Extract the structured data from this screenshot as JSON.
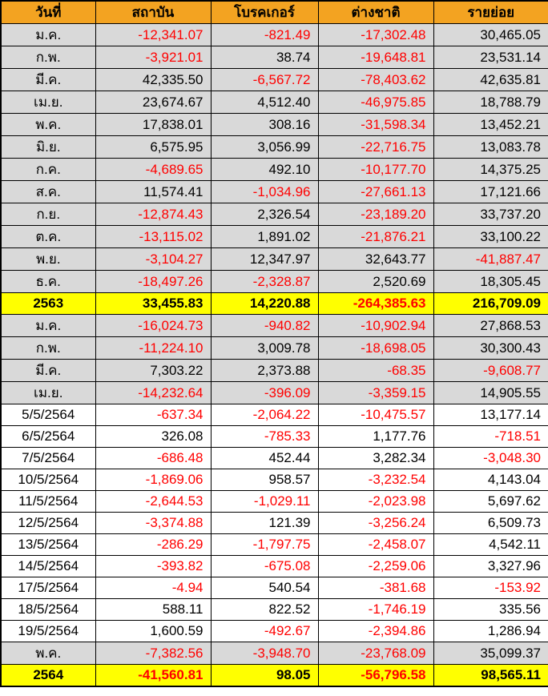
{
  "colors": {
    "header_bg": "#F3A321",
    "month_row_bg": "#D9D9D9",
    "day_row_bg": "#FFFFFF",
    "year_row_bg": "#FFFF00",
    "negative_text": "#FF0000",
    "positive_text": "#000000",
    "grid": "#000000"
  },
  "chart_data": {
    "type": "table",
    "columns": [
      "วันที่",
      "สถาบัน",
      "โบรคเกอร์",
      "ต่างชาติ",
      "รายย่อย"
    ],
    "rows": [
      {
        "type": "month",
        "date": "ม.ค.",
        "values": [
          "-12,341.07",
          "-821.49",
          "-17,302.48",
          "30,465.05"
        ]
      },
      {
        "type": "month",
        "date": "ก.พ.",
        "values": [
          "-3,921.01",
          "38.74",
          "-19,648.81",
          "23,531.14"
        ]
      },
      {
        "type": "month",
        "date": "มี.ค.",
        "values": [
          "42,335.50",
          "-6,567.72",
          "-78,403.62",
          "42,635.81"
        ]
      },
      {
        "type": "month",
        "date": "เม.ย.",
        "values": [
          "23,674.67",
          "4,512.40",
          "-46,975.85",
          "18,788.79"
        ]
      },
      {
        "type": "month",
        "date": "พ.ค.",
        "values": [
          "17,838.01",
          "308.16",
          "-31,598.34",
          "13,452.21"
        ]
      },
      {
        "type": "month",
        "date": "มิ.ย.",
        "values": [
          "6,575.95",
          "3,056.99",
          "-22,716.75",
          "13,083.78"
        ]
      },
      {
        "type": "month",
        "date": "ก.ค.",
        "values": [
          "-4,689.65",
          "492.10",
          "-10,177.70",
          "14,375.25"
        ]
      },
      {
        "type": "month",
        "date": "ส.ค.",
        "values": [
          "11,574.41",
          "-1,034.96",
          "-27,661.13",
          "17,121.66"
        ]
      },
      {
        "type": "month",
        "date": "ก.ย.",
        "values": [
          "-12,874.43",
          "2,326.54",
          "-23,189.20",
          "33,737.20"
        ]
      },
      {
        "type": "month",
        "date": "ต.ค.",
        "values": [
          "-13,115.02",
          "1,891.02",
          "-21,876.21",
          "33,100.22"
        ]
      },
      {
        "type": "month",
        "date": "พ.ย.",
        "values": [
          "-3,104.27",
          "12,347.97",
          "32,643.77",
          "-41,887.47"
        ]
      },
      {
        "type": "month",
        "date": "ธ.ค.",
        "values": [
          "-18,497.26",
          "-2,328.87",
          "2,520.69",
          "18,305.45"
        ]
      },
      {
        "type": "year",
        "date": "2563",
        "values": [
          "33,455.83",
          "14,220.88",
          "-264,385.63",
          "216,709.09"
        ]
      },
      {
        "type": "month",
        "date": "ม.ค.",
        "values": [
          "-16,024.73",
          "-940.82",
          "-10,902.94",
          "27,868.53"
        ]
      },
      {
        "type": "month",
        "date": "ก.พ.",
        "values": [
          "-11,224.10",
          "3,009.78",
          "-18,698.05",
          "30,300.43"
        ]
      },
      {
        "type": "month",
        "date": "มี.ค.",
        "values": [
          "7,303.22",
          "2,373.88",
          "-68.35",
          "-9,608.77"
        ]
      },
      {
        "type": "month",
        "date": "เม.ย.",
        "values": [
          "-14,232.64",
          "-396.09",
          "-3,359.15",
          "14,905.55"
        ]
      },
      {
        "type": "day",
        "date": "5/5/2564",
        "values": [
          "-637.34",
          "-2,064.22",
          "-10,475.57",
          "13,177.14"
        ]
      },
      {
        "type": "day",
        "date": "6/5/2564",
        "values": [
          "326.08",
          "-785.33",
          "1,177.76",
          "-718.51"
        ]
      },
      {
        "type": "day",
        "date": "7/5/2564",
        "values": [
          "-686.48",
          "452.44",
          "3,282.34",
          "-3,048.30"
        ]
      },
      {
        "type": "day",
        "date": "10/5/2564",
        "values": [
          "-1,869.06",
          "958.57",
          "-3,232.54",
          "4,143.04"
        ]
      },
      {
        "type": "day",
        "date": "11/5/2564",
        "values": [
          "-2,644.53",
          "-1,029.11",
          "-2,023.98",
          "5,697.62"
        ]
      },
      {
        "type": "day",
        "date": "12/5/2564",
        "values": [
          "-3,374.88",
          "121.39",
          "-3,256.24",
          "6,509.73"
        ]
      },
      {
        "type": "day",
        "date": "13/5/2564",
        "values": [
          "-286.29",
          "-1,797.75",
          "-2,458.07",
          "4,542.11"
        ]
      },
      {
        "type": "day",
        "date": "14/5/2564",
        "values": [
          "-393.82",
          "-675.08",
          "-2,259.06",
          "3,327.96"
        ]
      },
      {
        "type": "day",
        "date": "17/5/2564",
        "values": [
          "-4.94",
          "540.54",
          "-381.68",
          "-153.92"
        ]
      },
      {
        "type": "day",
        "date": "18/5/2564",
        "values": [
          "588.11",
          "822.52",
          "-1,746.19",
          "335.56"
        ]
      },
      {
        "type": "day",
        "date": "19/5/2564",
        "values": [
          "1,600.59",
          "-492.67",
          "-2,394.86",
          "1,286.94"
        ]
      },
      {
        "type": "month",
        "date": "พ.ค.",
        "values": [
          "-7,382.56",
          "-3,948.70",
          "-23,768.09",
          "35,099.37"
        ]
      },
      {
        "type": "year",
        "date": "2564",
        "values": [
          "-41,560.81",
          "98.05",
          "-56,796.58",
          "98,565.11"
        ]
      }
    ]
  }
}
